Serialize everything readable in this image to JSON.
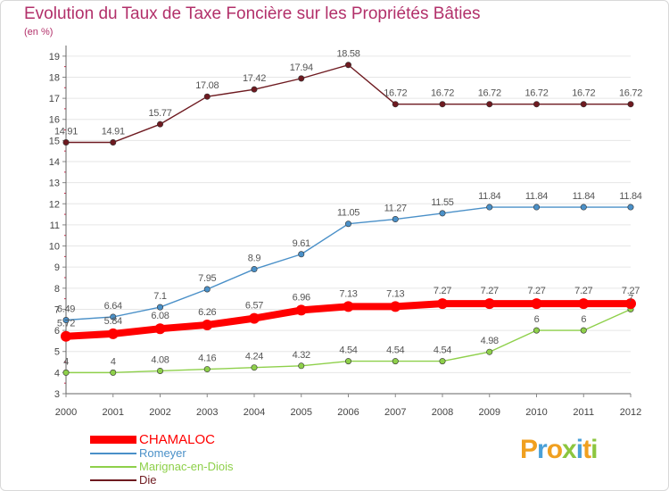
{
  "title": "Evolution du Taux de Taxe Foncière sur les Propriétés Bâties",
  "subtitle": "(en %)",
  "brand": "Proxiti",
  "chart_data": {
    "type": "line",
    "x": [
      "2000",
      "2001",
      "2002",
      "2003",
      "2004",
      "2005",
      "2006",
      "2007",
      "2008",
      "2009",
      "2010",
      "2011",
      "2012"
    ],
    "y_ticks": [
      "3",
      "4",
      "5",
      "6",
      "7",
      "8",
      "9",
      "10",
      "11",
      "12",
      "13",
      "14",
      "15",
      "16",
      "17",
      "18",
      "19"
    ],
    "ylim": [
      3,
      19.5
    ],
    "grid": "horizontal",
    "legend_position": "bottom-left",
    "series": [
      {
        "name": "CHAMALOC",
        "color": "#ff0000",
        "values": [
          5.72,
          5.84,
          6.08,
          6.26,
          6.57,
          6.96,
          7.13,
          7.13,
          7.27,
          7.27,
          7.27,
          7.27,
          7.27
        ],
        "labels": [
          "5.72",
          "5.84",
          "6.08",
          "6.26",
          "6.57",
          "6.96",
          "7.13",
          "7.13",
          "7.27",
          "7.27",
          "7.27",
          "7.27",
          "7.27"
        ]
      },
      {
        "name": "Romeyer",
        "color": "#4a90c8",
        "values": [
          6.49,
          6.64,
          7.1,
          7.95,
          8.9,
          9.61,
          11.05,
          11.27,
          11.55,
          11.84,
          11.84,
          11.84,
          11.84
        ],
        "labels": [
          "6.49",
          "6.64",
          "7.1",
          "7.95",
          "8.9",
          "9.61",
          "11.05",
          "11.27",
          "11.55",
          "11.84",
          "11.84",
          "11.84",
          "11.84"
        ]
      },
      {
        "name": "Marignac-en-Diois",
        "color": "#8ed04a",
        "values": [
          4,
          4,
          4.08,
          4.16,
          4.24,
          4.32,
          4.54,
          4.54,
          4.54,
          4.98,
          6,
          6,
          7
        ],
        "labels": [
          "4",
          "4",
          "4.08",
          "4.16",
          "4.24",
          "4.32",
          "4.54",
          "4.54",
          "4.54",
          "4.98",
          "6",
          "6",
          "7"
        ]
      },
      {
        "name": "Die",
        "color": "#6e1a20",
        "values": [
          14.91,
          14.91,
          15.77,
          17.08,
          17.42,
          17.94,
          18.58,
          16.72,
          16.72,
          16.72,
          16.72,
          16.72,
          16.72
        ],
        "labels": [
          "14.91",
          "14.91",
          "15.77",
          "17.08",
          "17.42",
          "17.94",
          "18.58",
          "16.72",
          "16.72",
          "16.72",
          "16.72",
          "16.72",
          "16.72"
        ]
      }
    ]
  }
}
